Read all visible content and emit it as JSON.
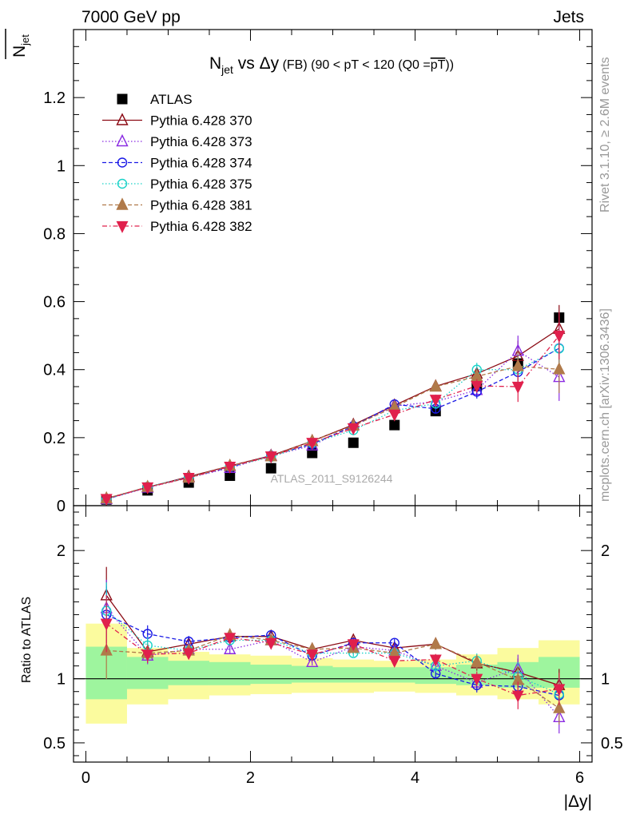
{
  "header": {
    "energy_label": "7000 GeV pp",
    "category_label": "Jets",
    "side_rivet": "Rivet 3.1.10, ≥ 2.6M events",
    "side_mcplots": "mcplots.cern.ch [arXiv:1306.3436]",
    "watermark": "ATLAS_2011_S9126244"
  },
  "title": {
    "main": "N",
    "main_sub": "jet",
    "vs": " vs Δy",
    "fb": " (FB)",
    "cut": " (90 < pT < 120 (Q0 =",
    "q0": "pT",
    "tail": "))"
  },
  "colors": {
    "ATLAS": "#000000",
    "p370": "#8b0a14",
    "p373": "#8a2be2",
    "p374": "#1a1ae6",
    "p375": "#19d2c8",
    "p381": "#b07a4a",
    "p382": "#e0204c",
    "band_green": "#9ef59e",
    "band_yellow": "#fbfb9e"
  },
  "chart_data": {
    "type": "scatter",
    "x": [
      0.25,
      0.75,
      1.25,
      1.75,
      2.25,
      2.75,
      3.25,
      3.75,
      4.25,
      4.75,
      5.25,
      5.75
    ],
    "xlabel": "|Δy|",
    "xlim": [
      -0.15,
      6.15
    ],
    "xticks": [
      "0",
      "2",
      "4",
      "6"
    ],
    "main": {
      "ylabel": "N",
      "ylabel_sub": "jet",
      "ylim": [
        0,
        1.4
      ],
      "yticks": [
        "0",
        "0.2",
        "0.4",
        "0.6",
        "0.8",
        "1",
        "1.2"
      ]
    },
    "ratio": {
      "ylabel": "Ratio to ATLAS",
      "ylim": [
        0.35,
        2.35
      ],
      "yticks": [
        "0.5",
        "1",
        "2"
      ],
      "band_green": [
        [
          0.84,
          1.25
        ],
        [
          0.92,
          1.17
        ],
        [
          0.95,
          1.14
        ],
        [
          0.95,
          1.13
        ],
        [
          0.96,
          1.11
        ],
        [
          0.97,
          1.1
        ],
        [
          0.97,
          1.09
        ],
        [
          0.97,
          1.09
        ],
        [
          0.96,
          1.09
        ],
        [
          0.95,
          1.11
        ],
        [
          0.93,
          1.13
        ],
        [
          0.93,
          1.17
        ]
      ],
      "band_yellow": [
        [
          0.65,
          1.43
        ],
        [
          0.8,
          1.24
        ],
        [
          0.84,
          1.21
        ],
        [
          0.87,
          1.19
        ],
        [
          0.88,
          1.18
        ],
        [
          0.89,
          1.16
        ],
        [
          0.89,
          1.15
        ],
        [
          0.9,
          1.14
        ],
        [
          0.89,
          1.15
        ],
        [
          0.87,
          1.19
        ],
        [
          0.84,
          1.24
        ],
        [
          0.8,
          1.3
        ]
      ]
    },
    "series": [
      {
        "name": "ATLAS",
        "marker": "square",
        "values": [
          0.018,
          0.045,
          0.068,
          0.088,
          0.11,
          0.155,
          0.185,
          0.237,
          0.278,
          0.352,
          0.418,
          0.553
        ]
      },
      {
        "name": "Pythia 6.428 370",
        "marker": "triangle-open",
        "line": "solid",
        "values": [
          0.021,
          0.054,
          0.085,
          0.117,
          0.147,
          0.19,
          0.238,
          0.295,
          0.351,
          0.388,
          0.44,
          0.52
        ],
        "err": [
          0.004,
          0.003,
          0.003,
          0.003,
          0.003,
          0.004,
          0.005,
          0.007,
          0.012,
          0.02,
          0.045,
          0.07
        ],
        "ratio": [
          1.65,
          1.21,
          1.27,
          1.33,
          1.33,
          1.23,
          1.3,
          1.24,
          1.27,
          1.12,
          1.05,
          0.95
        ]
      },
      {
        "name": "Pythia 6.428 373",
        "marker": "triangle-open",
        "line": "dotted",
        "values": [
          0.019,
          0.053,
          0.082,
          0.111,
          0.146,
          0.177,
          0.235,
          0.293,
          0.306,
          0.34,
          0.455,
          0.378
        ],
        "err": [
          0.004,
          0.003,
          0.003,
          0.003,
          0.003,
          0.004,
          0.005,
          0.007,
          0.012,
          0.02,
          0.045,
          0.07
        ],
        "ratio": [
          1.55,
          1.18,
          1.23,
          1.23,
          1.3,
          1.13,
          1.25,
          1.22,
          1.1,
          0.97,
          1.08,
          0.7
        ]
      },
      {
        "name": "Pythia 6.428 374",
        "marker": "circle-open",
        "line": "dashed",
        "values": [
          0.019,
          0.055,
          0.083,
          0.113,
          0.147,
          0.181,
          0.234,
          0.298,
          0.285,
          0.335,
          0.393,
          0.463
        ],
        "err": [
          0.004,
          0.003,
          0.003,
          0.003,
          0.003,
          0.004,
          0.005,
          0.007,
          0.012,
          0.02,
          0.045,
          0.07
        ],
        "ratio": [
          1.5,
          1.35,
          1.29,
          1.32,
          1.34,
          1.18,
          1.28,
          1.28,
          1.04,
          0.95,
          0.94,
          0.87
        ]
      },
      {
        "name": "Pythia 6.428 375",
        "marker": "circle-open",
        "line": "dotted",
        "values": [
          0.019,
          0.056,
          0.083,
          0.115,
          0.143,
          0.184,
          0.222,
          0.28,
          0.3,
          0.4,
          0.4,
          0.462
        ],
        "err": [
          0.004,
          0.003,
          0.003,
          0.003,
          0.003,
          0.004,
          0.005,
          0.007,
          0.012,
          0.02,
          0.045,
          0.07
        ],
        "ratio": [
          1.53,
          1.26,
          1.22,
          1.3,
          1.3,
          1.2,
          1.2,
          1.2,
          1.1,
          1.14,
          1.02,
          0.88
        ]
      },
      {
        "name": "Pythia 6.428 381",
        "marker": "triangle-filled",
        "line": "dashed",
        "values": [
          0.021,
          0.055,
          0.082,
          0.117,
          0.145,
          0.19,
          0.235,
          0.29,
          0.35,
          0.38,
          0.41,
          0.401
        ],
        "err": [
          0.004,
          0.003,
          0.003,
          0.003,
          0.003,
          0.004,
          0.005,
          0.007,
          0.012,
          0.02,
          0.045,
          0.07
        ],
        "ratio": [
          1.22,
          1.2,
          1.22,
          1.34,
          1.3,
          1.23,
          1.24,
          1.2,
          1.27,
          1.13,
          0.99,
          0.77
        ]
      },
      {
        "name": "Pythia 6.428 382",
        "marker": "triangle-down-filled",
        "line": "dashdot",
        "values": [
          0.02,
          0.054,
          0.082,
          0.115,
          0.145,
          0.185,
          0.228,
          0.268,
          0.312,
          0.352,
          0.35,
          0.5
        ],
        "err": [
          0.004,
          0.003,
          0.003,
          0.003,
          0.003,
          0.004,
          0.005,
          0.007,
          0.012,
          0.02,
          0.045,
          0.07
        ],
        "ratio": [
          1.43,
          1.19,
          1.2,
          1.32,
          1.28,
          1.19,
          1.27,
          1.14,
          1.15,
          1.0,
          0.87,
          0.92
        ]
      }
    ]
  }
}
